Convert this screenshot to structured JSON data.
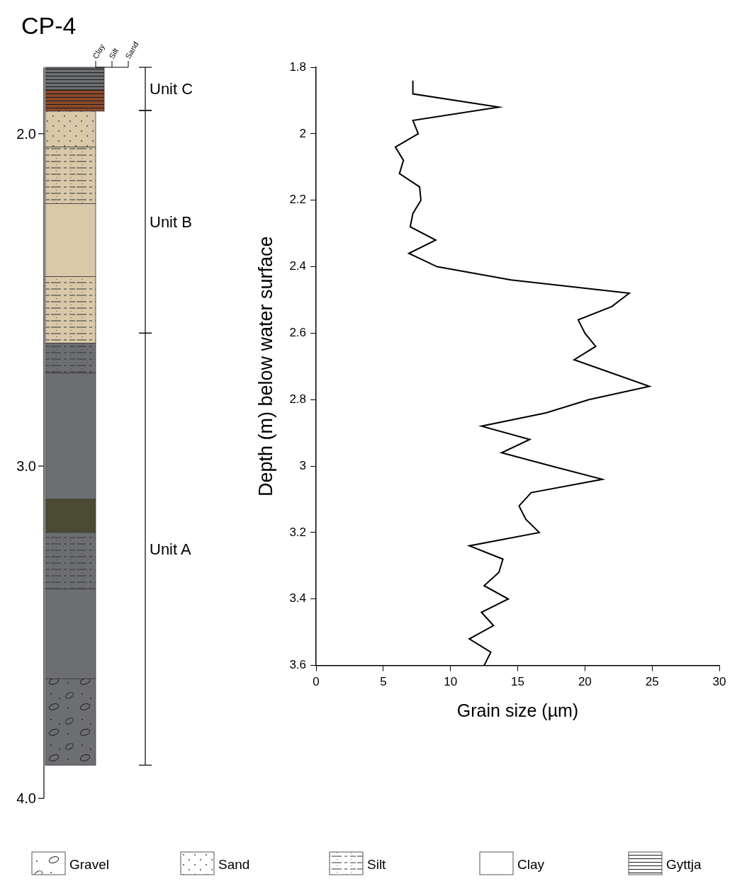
{
  "title": "CP-4",
  "log": {
    "depth_lim": [
      1.8,
      4.0
    ],
    "depth_ticks": [
      {
        "value": 2,
        "label": "2.0"
      },
      {
        "value": 3,
        "label": "3.0"
      },
      {
        "value": 4,
        "label": "4.0"
      }
    ],
    "texture_scale": [
      "Clay",
      "Silt",
      "Sand"
    ],
    "layers": [
      {
        "top": 1.8,
        "bottom": 1.867,
        "pattern": "Gyttja",
        "color": "#6d6e71"
      },
      {
        "top": 1.867,
        "bottom": 1.932,
        "pattern": "Gyttja",
        "color": "#8b4a2b"
      },
      {
        "top": 1.932,
        "bottom": 2.04,
        "pattern": "Sand",
        "color": "#d9c9a9"
      },
      {
        "top": 2.04,
        "bottom": 2.21,
        "pattern": "Silt",
        "color": "#d9c9a9"
      },
      {
        "top": 2.21,
        "bottom": 2.43,
        "pattern": "Clay",
        "color": "#d9c9a9"
      },
      {
        "top": 2.43,
        "bottom": 2.63,
        "pattern": "Silt",
        "color": "#d9c9a9"
      },
      {
        "top": 2.63,
        "bottom": 2.72,
        "pattern": "Silt",
        "color": "#6d6e71"
      },
      {
        "top": 2.72,
        "bottom": 3.1,
        "pattern": "Clay",
        "color": "#6d6e71"
      },
      {
        "top": 3.1,
        "bottom": 3.2,
        "pattern": "Clay",
        "color": "#4b4a32"
      },
      {
        "top": 3.2,
        "bottom": 3.37,
        "pattern": "Silt",
        "color": "#6d6e71"
      },
      {
        "top": 3.37,
        "bottom": 3.64,
        "pattern": "Clay",
        "color": "#6d6e71"
      },
      {
        "top": 3.64,
        "bottom": 3.9,
        "pattern": "Gravel",
        "color": "#6d6e71"
      }
    ],
    "units": [
      {
        "name": "Unit C",
        "top": 1.8,
        "bottom": 1.93
      },
      {
        "name": "Unit B",
        "top": 1.93,
        "bottom": 2.6
      },
      {
        "name": "Unit A",
        "top": 2.6,
        "bottom": 3.9
      }
    ],
    "legend": [
      "Gravel",
      "Sand",
      "Silt",
      "Clay",
      "Gyttja"
    ]
  },
  "chart_data": {
    "type": "line",
    "x_label": "Grain size (µm)",
    "y_label": "Depth (m) below water surface",
    "xlim": [
      0,
      30
    ],
    "xticks": [
      0,
      5,
      10,
      15,
      20,
      25,
      30
    ],
    "ylim": [
      3.6,
      1.8
    ],
    "yticks": [
      1.8,
      2,
      2.2,
      2.4,
      2.6,
      2.8,
      3,
      3.2,
      3.4,
      3.6
    ],
    "grid": false,
    "series": [
      {
        "color": "#000000",
        "line_style": "solid",
        "marker": "none",
        "x": [
          7.2,
          7.2,
          13.6,
          7.2,
          7.6,
          5.9,
          6.5,
          6.2,
          7.7,
          7.8,
          7.2,
          7.0,
          8.9,
          6.9,
          9.0,
          14.5,
          23.3,
          22.0,
          19.5,
          20.0,
          20.8,
          19.2,
          22.0,
          24.8,
          20.3,
          17.1,
          12.3,
          15.9,
          13.8,
          17.5,
          21.3,
          16.0,
          15.1,
          15.6,
          16.6,
          11.4,
          13.9,
          13.6,
          12.5,
          14.3,
          12.3,
          13.2,
          11.4,
          13.0,
          12.5
        ],
        "y": [
          1.84,
          1.88,
          1.92,
          1.96,
          2.0,
          2.04,
          2.08,
          2.12,
          2.16,
          2.2,
          2.24,
          2.28,
          2.32,
          2.36,
          2.4,
          2.44,
          2.48,
          2.52,
          2.56,
          2.6,
          2.64,
          2.68,
          2.72,
          2.76,
          2.8,
          2.84,
          2.88,
          2.92,
          2.96,
          3.0,
          3.04,
          3.08,
          3.12,
          3.16,
          3.2,
          3.24,
          3.28,
          3.32,
          3.36,
          3.4,
          3.44,
          3.48,
          3.52,
          3.56,
          3.6
        ]
      }
    ]
  }
}
